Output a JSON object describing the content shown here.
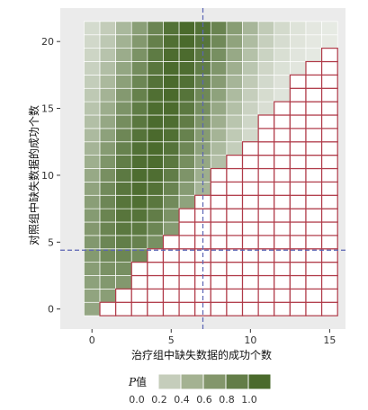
{
  "chart_data": {
    "type": "heatmap",
    "xlabel": "治疗组中缺失数据的成功个数",
    "ylabel": "对照组中缺失数据的成功个数",
    "xlim": [
      -2,
      16
    ],
    "ylim": [
      -1.5,
      22.5
    ],
    "x_ticks": [
      0,
      5,
      10,
      15
    ],
    "y_ticks": [
      0,
      5,
      10,
      15,
      20
    ],
    "x_grid": [
      0,
      1,
      2,
      3,
      4,
      5,
      6,
      7,
      8,
      9,
      10,
      11,
      12,
      13,
      14,
      15
    ],
    "y_grid": [
      0,
      1,
      2,
      3,
      4,
      5,
      6,
      7,
      8,
      9,
      10,
      11,
      12,
      13,
      14,
      15,
      16,
      17,
      18,
      19,
      20,
      21
    ],
    "observed_treatment": 7,
    "observed_control": 4.4,
    "significant_region": "y < x*1.4 - 1 (outlined in red)",
    "significance_color": "#b03a48",
    "reference_line_color": "#5a64b4",
    "legend": {
      "title_italic": "P",
      "title_rest": "值",
      "ticks": [
        "0.0",
        "0.2",
        "0.4",
        "0.6",
        "0.8",
        "1.0"
      ],
      "colors": [
        "#e3e6df",
        "#c5cdbb",
        "#a4b292",
        "#83966b",
        "#637d48",
        "#4a6a2c"
      ]
    },
    "panel_bg": "#ebebeb",
    "grid_color": "#ffffff",
    "low_color": "#e8ebe5",
    "high_color": "#4a6a2c"
  }
}
